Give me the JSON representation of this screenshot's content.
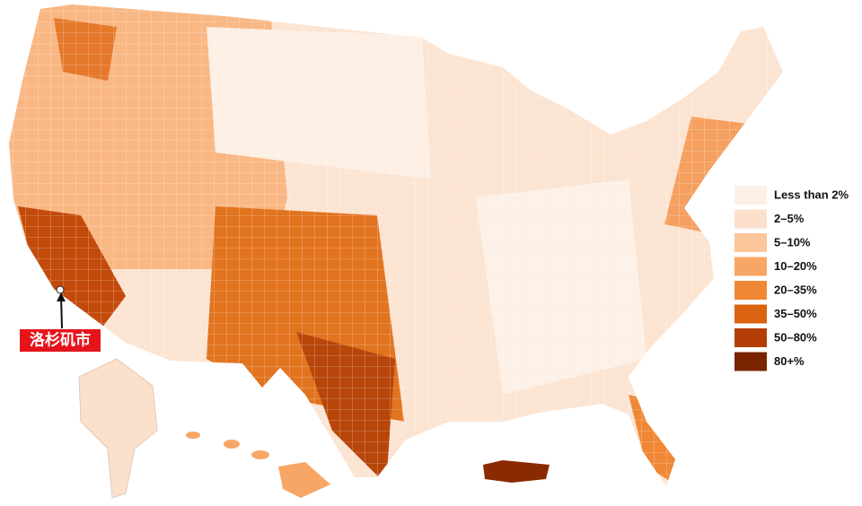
{
  "legend": {
    "items": [
      {
        "label": "Less than 2%",
        "color": "#fdf1e7"
      },
      {
        "label": "2–5%",
        "color": "#fce0cc"
      },
      {
        "label": "5–10%",
        "color": "#fbc699"
      },
      {
        "label": "10–20%",
        "color": "#f8a665"
      },
      {
        "label": "20–35%",
        "color": "#f08735"
      },
      {
        "label": "35–50%",
        "color": "#db620f"
      },
      {
        "label": "50–80%",
        "color": "#b23e05"
      },
      {
        "label": "80+%",
        "color": "#7a2400"
      }
    ]
  },
  "annotation": {
    "label": "洛杉矶市"
  }
}
